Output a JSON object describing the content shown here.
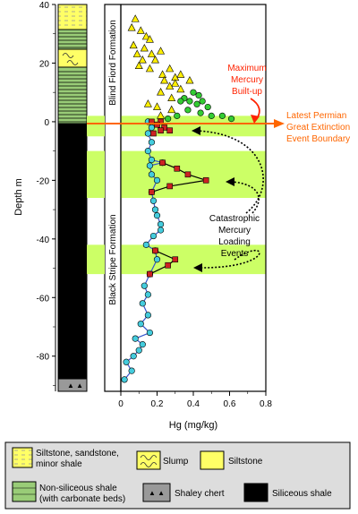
{
  "chart_data": {
    "type": "scatter",
    "xlabel": "Hg (mg/kg)",
    "ylabel": "Depth m",
    "xlim": [
      0,
      0.8
    ],
    "ylim": [
      -92,
      40
    ],
    "x_ticks": [
      "0",
      "0.2",
      "0.4",
      "0.6",
      "0.8"
    ],
    "y_ticks": [
      "40",
      "20",
      "0",
      "-20",
      "-40",
      "-60",
      "-80"
    ],
    "formations": [
      "Blind Fiord Formation",
      "Black Stripe Formation"
    ],
    "boundary_label": [
      "Latest Permian",
      "Great Extinction",
      "Event Boundary"
    ],
    "max_label": [
      "Maximum",
      "Mercury",
      "Built-up"
    ],
    "events_label": [
      "Catastrophic",
      "Mercury",
      "Loading",
      "Events"
    ],
    "shaded_bands": [
      [
        -5,
        2
      ],
      [
        -26,
        -10
      ],
      [
        -52,
        -42
      ]
    ],
    "triangles": [
      {
        "x": 0.08,
        "y": 35
      },
      {
        "x": 0.06,
        "y": 32
      },
      {
        "x": 0.11,
        "y": 31
      },
      {
        "x": 0.14,
        "y": 29
      },
      {
        "x": 0.16,
        "y": 28
      },
      {
        "x": 0.07,
        "y": 26
      },
      {
        "x": 0.13,
        "y": 25
      },
      {
        "x": 0.22,
        "y": 24
      },
      {
        "x": 0.09,
        "y": 23
      },
      {
        "x": 0.17,
        "y": 23
      },
      {
        "x": 0.12,
        "y": 21
      },
      {
        "x": 0.19,
        "y": 21
      },
      {
        "x": 0.1,
        "y": 19
      },
      {
        "x": 0.16,
        "y": 18
      },
      {
        "x": 0.27,
        "y": 18
      },
      {
        "x": 0.23,
        "y": 16
      },
      {
        "x": 0.33,
        "y": 16
      },
      {
        "x": 0.3,
        "y": 15
      },
      {
        "x": 0.24,
        "y": 14
      },
      {
        "x": 0.38,
        "y": 14
      },
      {
        "x": 0.3,
        "y": 13
      },
      {
        "x": 0.27,
        "y": 12
      },
      {
        "x": 0.33,
        "y": 11
      },
      {
        "x": 0.22,
        "y": 10
      },
      {
        "x": 0.28,
        "y": 8
      },
      {
        "x": 0.15,
        "y": 6
      },
      {
        "x": 0.2,
        "y": 5
      },
      {
        "x": 0.28,
        "y": 4
      },
      {
        "x": 0.22,
        "y": 2
      }
    ],
    "green_circles": [
      {
        "x": 0.4,
        "y": 10
      },
      {
        "x": 0.43,
        "y": 9
      },
      {
        "x": 0.35,
        "y": 8
      },
      {
        "x": 0.33,
        "y": 7
      },
      {
        "x": 0.38,
        "y": 7
      },
      {
        "x": 0.42,
        "y": 6
      },
      {
        "x": 0.45,
        "y": 7
      },
      {
        "x": 0.48,
        "y": 5
      },
      {
        "x": 0.37,
        "y": 4
      },
      {
        "x": 0.44,
        "y": 3
      },
      {
        "x": 0.5,
        "y": 2
      },
      {
        "x": 0.56,
        "y": 2
      },
      {
        "x": 0.61,
        "y": 1
      },
      {
        "x": 0.31,
        "y": 2
      },
      {
        "x": 0.26,
        "y": 1
      }
    ],
    "red_squares": [
      {
        "x": 0.17,
        "y": 0
      },
      {
        "x": 0.22,
        "y": 0
      },
      {
        "x": 0.2,
        "y": -1
      },
      {
        "x": 0.24,
        "y": -2
      },
      {
        "x": 0.27,
        "y": -3
      },
      {
        "x": 0.22,
        "y": -3
      },
      {
        "x": 0.18,
        "y": -4
      },
      {
        "x": 0.23,
        "y": -14
      },
      {
        "x": 0.31,
        "y": -16
      },
      {
        "x": 0.37,
        "y": -18
      },
      {
        "x": 0.47,
        "y": -20
      },
      {
        "x": 0.27,
        "y": -22
      },
      {
        "x": 0.17,
        "y": -24
      },
      {
        "x": 0.19,
        "y": -44
      },
      {
        "x": 0.3,
        "y": -47
      },
      {
        "x": 0.26,
        "y": -49
      },
      {
        "x": 0.16,
        "y": -52
      }
    ],
    "cyan_profile": [
      {
        "x": 0.15,
        "y": 0
      },
      {
        "x": 0.17,
        "y": -2
      },
      {
        "x": 0.15,
        "y": -4
      },
      {
        "x": 0.17,
        "y": -7
      },
      {
        "x": 0.15,
        "y": -10
      },
      {
        "x": 0.17,
        "y": -13
      },
      {
        "x": 0.23,
        "y": -14
      },
      {
        "x": 0.16,
        "y": -15
      },
      {
        "x": 0.17,
        "y": -18
      },
      {
        "x": 0.2,
        "y": -20
      },
      {
        "x": 0.17,
        "y": -24
      },
      {
        "x": 0.18,
        "y": -27
      },
      {
        "x": 0.19,
        "y": -30
      },
      {
        "x": 0.2,
        "y": -32
      },
      {
        "x": 0.22,
        "y": -35
      },
      {
        "x": 0.22,
        "y": -37
      },
      {
        "x": 0.18,
        "y": -39
      },
      {
        "x": 0.14,
        "y": -42
      },
      {
        "x": 0.19,
        "y": -44
      },
      {
        "x": 0.2,
        "y": -47
      },
      {
        "x": 0.16,
        "y": -52
      },
      {
        "x": 0.13,
        "y": -56
      },
      {
        "x": 0.15,
        "y": -59
      },
      {
        "x": 0.12,
        "y": -62
      },
      {
        "x": 0.15,
        "y": -66
      },
      {
        "x": 0.11,
        "y": -69
      },
      {
        "x": 0.16,
        "y": -72
      },
      {
        "x": 0.08,
        "y": -74
      },
      {
        "x": 0.12,
        "y": -76
      },
      {
        "x": 0.1,
        "y": -78
      },
      {
        "x": 0.07,
        "y": -80
      },
      {
        "x": 0.03,
        "y": -82
      },
      {
        "x": 0.06,
        "y": -85
      },
      {
        "x": 0.02,
        "y": -88
      }
    ],
    "red_segments": [
      [
        {
          "x": 0.23,
          "y": -14
        },
        {
          "x": 0.31,
          "y": -16
        },
        {
          "x": 0.37,
          "y": -18
        },
        {
          "x": 0.47,
          "y": -20
        },
        {
          "x": 0.27,
          "y": -22
        },
        {
          "x": 0.17,
          "y": -24
        }
      ],
      [
        {
          "x": 0.19,
          "y": -44
        },
        {
          "x": 0.3,
          "y": -47
        },
        {
          "x": 0.26,
          "y": -49
        },
        {
          "x": 0.16,
          "y": -52
        }
      ]
    ]
  },
  "legend": [
    {
      "label": "Siltstone, sandstone, minor shale",
      "lines": [
        "Siltstone, sandstone,",
        "minor shale"
      ]
    },
    {
      "label": "Slump",
      "lines": [
        "Slump"
      ]
    },
    {
      "label": "Siltstone",
      "lines": [
        "Siltstone"
      ]
    },
    {
      "label": "Non-siliceous shale (with carbonate beds)",
      "lines": [
        "Non-siliceous shale",
        "(with carbonate beds)"
      ]
    },
    {
      "label": "Shaley chert",
      "lines": [
        "Shaley chert"
      ]
    },
    {
      "label": "Siliceous shale",
      "lines": [
        "Siliceous shale"
      ]
    }
  ],
  "colors": {
    "yellow": "#ffff66",
    "green_band": "#ccff66",
    "shale_green": "#99cc77",
    "boundary": "#ff6600",
    "red_text": "#ff2200",
    "triangle": "#ffee00",
    "circle_green": "#33cc33",
    "square_red": "#cc2222",
    "cyan": "#44ccdd",
    "profile_line": "#3355cc",
    "legend_bg": "#dddddd"
  }
}
